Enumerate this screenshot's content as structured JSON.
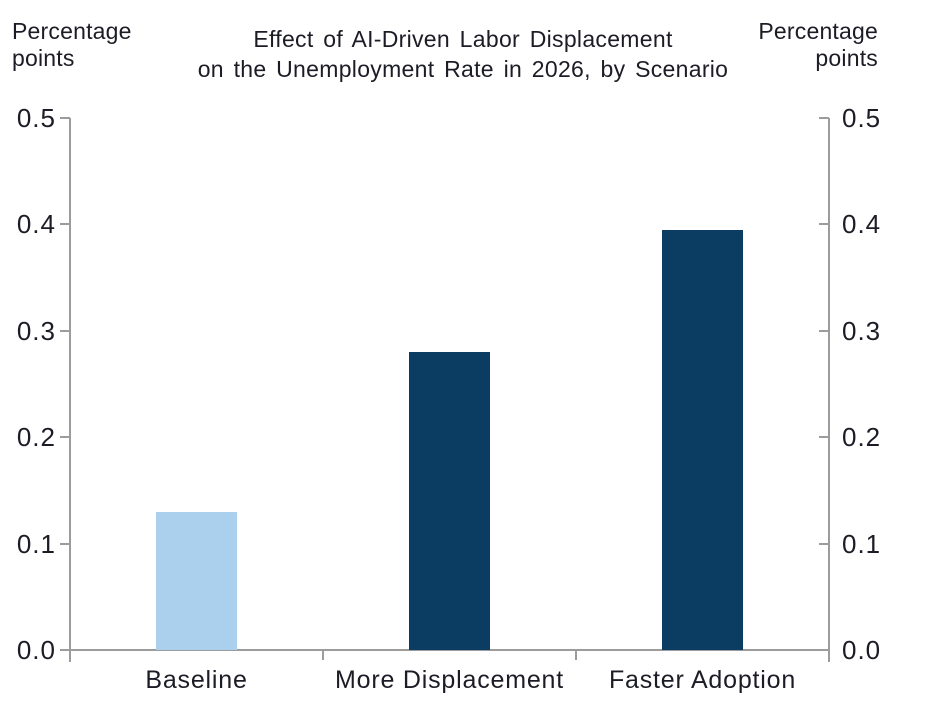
{
  "title": {
    "line1": "Effect of AI-Driven Labor Displacement",
    "line2": "on the Unemployment Rate in 2026, by Scenario"
  },
  "left_axis_title": {
    "line1": "Percentage",
    "line2": "points"
  },
  "right_axis_title": {
    "line1": "Percentage",
    "line2": "points"
  },
  "chart_data": {
    "type": "bar",
    "title": "Effect of AI-Driven Labor Displacement on the Unemployment Rate in 2026, by Scenario",
    "categories": [
      "Baseline",
      "More Displacement",
      "Faster Adoption"
    ],
    "values": [
      0.13,
      0.28,
      0.395
    ],
    "bar_colors": [
      "#abd0ee",
      "#0b3d63",
      "#0b3d63"
    ],
    "xlabel": "",
    "ylabel_left": "Percentage points",
    "ylabel_right": "Percentage points",
    "ylim": [
      0,
      0.5
    ],
    "yticks": [
      0,
      0.1,
      0.2,
      0.3,
      0.4,
      0.5
    ],
    "ytick_labels": [
      "0.0",
      "0.1",
      "0.2",
      "0.3",
      "0.4",
      "0.5"
    ],
    "grid": false,
    "dual_axis": true,
    "legend": "none"
  },
  "colors": {
    "bar_light": "#abd0ee",
    "bar_dark": "#0b3d63",
    "axis": "#9c9c9c",
    "text": "#1c1c26"
  }
}
